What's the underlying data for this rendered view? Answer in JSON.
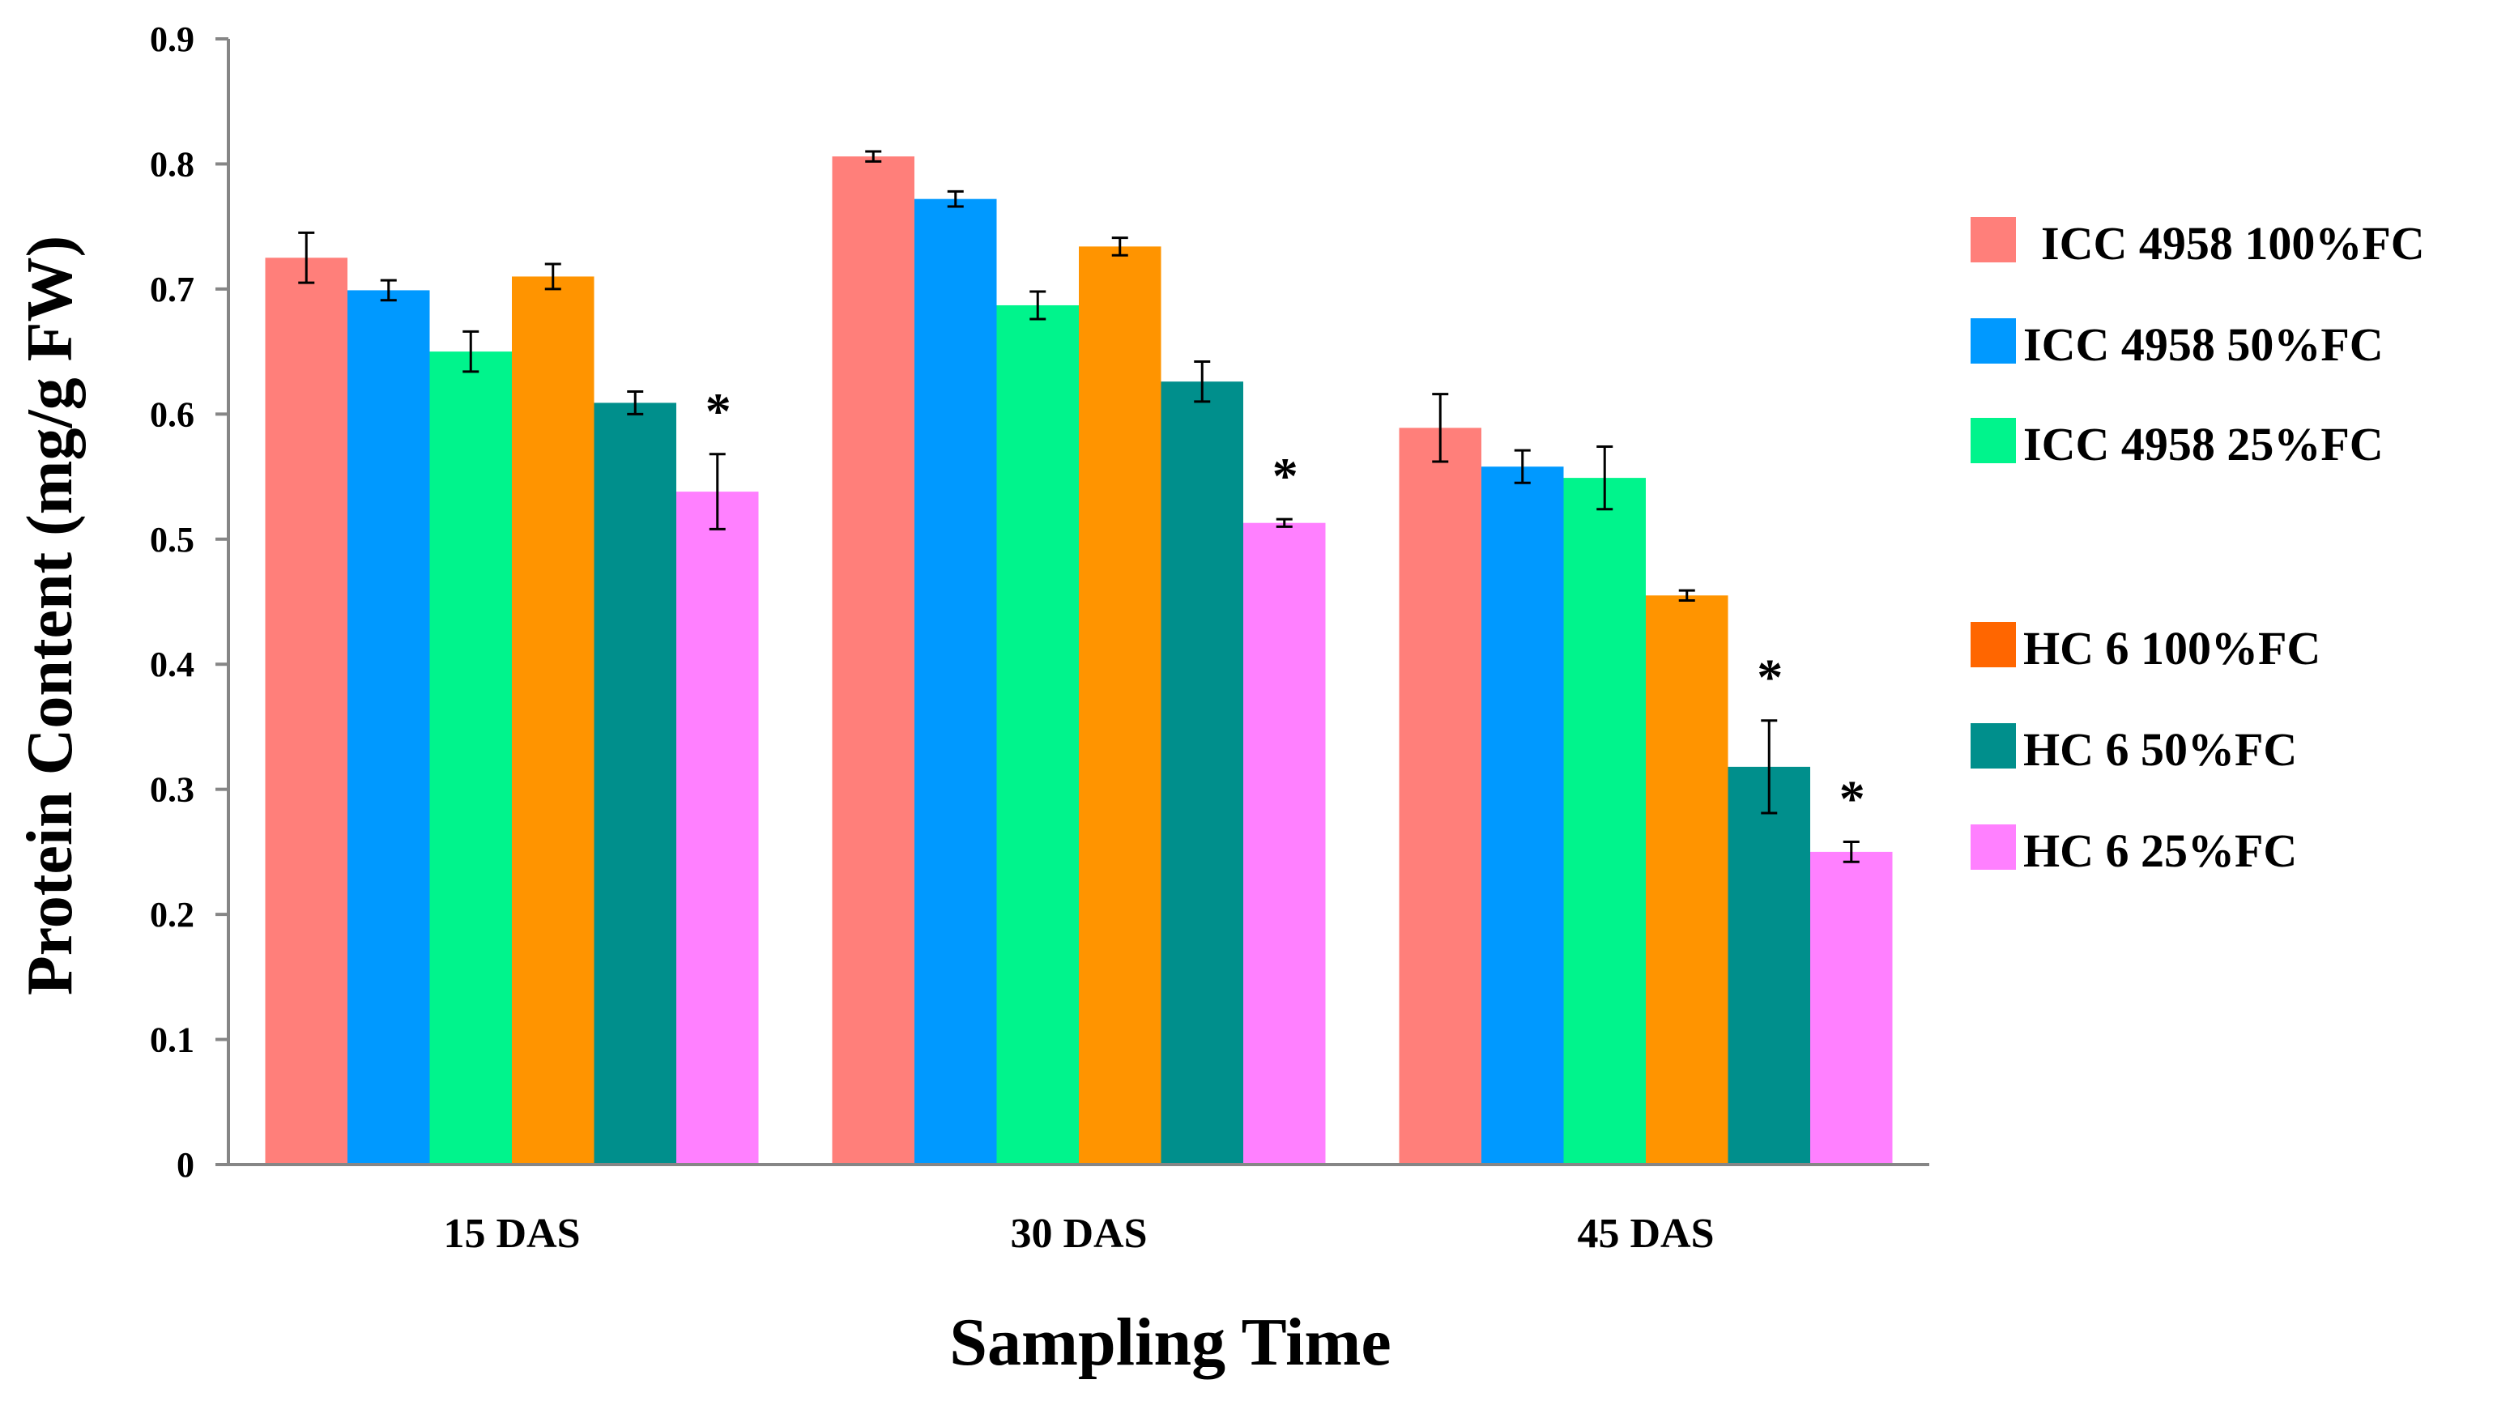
{
  "chart_data": {
    "type": "bar",
    "title": "",
    "xlabel": "Sampling Time",
    "ylabel": "Protein Content (mg/g FW)",
    "ylim": [
      0,
      0.9
    ],
    "yticks": [
      0,
      0.1,
      0.2,
      0.3,
      0.4,
      0.5,
      0.6,
      0.7,
      0.8,
      0.9
    ],
    "ytick_labels": [
      "0",
      "0.1",
      "0.2",
      "0.3",
      "0.4",
      "0.5",
      "0.6",
      "0.7",
      "0.8",
      "0.9"
    ],
    "grid": false,
    "legend_position": "right",
    "categories": [
      "15 DAS",
      "30 DAS",
      "45 DAS"
    ],
    "series": [
      {
        "name": "ICC 4958 100%FC",
        "color": "#ff7f7a",
        "legend_color": "#ff7f7a",
        "values": [
          0.725,
          0.806,
          0.589
        ],
        "errors": [
          0.02,
          0.004,
          0.027
        ],
        "significant": [
          false,
          false,
          false
        ]
      },
      {
        "name": "ICC 4958 50%FC",
        "color": "#0099ff",
        "legend_color": "#0099ff",
        "values": [
          0.699,
          0.772,
          0.558
        ],
        "errors": [
          0.008,
          0.006,
          0.013
        ],
        "significant": [
          false,
          false,
          false
        ]
      },
      {
        "name": "ICC 4958 25%FC",
        "color": "#00f48c",
        "legend_color": "#00f48c",
        "values": [
          0.65,
          0.687,
          0.549
        ],
        "errors": [
          0.016,
          0.011,
          0.025
        ],
        "significant": [
          false,
          false,
          false
        ]
      },
      {
        "name": "HC 6 100%FC",
        "color": "#ff9400",
        "legend_color": "#ff6600",
        "values": [
          0.71,
          0.734,
          0.455
        ],
        "errors": [
          0.01,
          0.007,
          0.004
        ],
        "significant": [
          false,
          false,
          false
        ]
      },
      {
        "name": "HC 6 50%FC",
        "color": "#008f8c",
        "legend_color": "#008f8c",
        "values": [
          0.609,
          0.626,
          0.318
        ],
        "errors": [
          0.009,
          0.016,
          0.037
        ],
        "significant": [
          false,
          false,
          true
        ]
      },
      {
        "name": "HC 6 25%FC",
        "color": "#ff80ff",
        "legend_color": "#ff80ff",
        "values": [
          0.538,
          0.513,
          0.25
        ],
        "errors": [
          0.03,
          0.003,
          0.008
        ],
        "significant": [
          true,
          true,
          true
        ]
      }
    ],
    "significance_marker": "*"
  }
}
